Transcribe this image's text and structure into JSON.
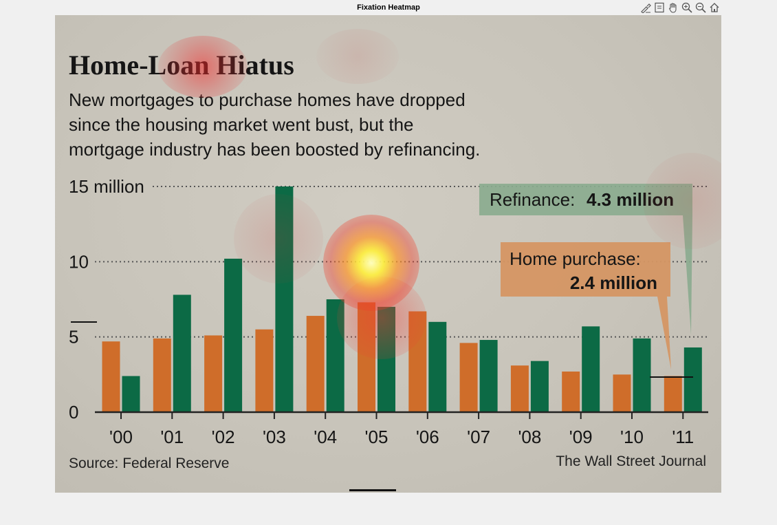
{
  "window": {
    "title": "Fixation Heatmap"
  },
  "toolbar": {
    "tools": [
      "brush-icon",
      "save-icon",
      "pan-icon",
      "zoom-in-icon",
      "zoom-out-icon",
      "home-icon"
    ]
  },
  "colors": {
    "home_purchase": "#cf6d2a",
    "refinance": "#0c6a45",
    "refinance_callout": "#8bab8f",
    "purchase_callout": "#d59663",
    "axis": "#222222",
    "text": "#111111"
  },
  "chart_data": {
    "type": "bar",
    "title": "Home-Loan Hiatus",
    "subtitle": [
      "New mortgages to purchase homes have dropped",
      "since the housing market went bust, but the",
      "mortgage industry has been boosted by refinancing."
    ],
    "categories": [
      "'00",
      "'01",
      "'02",
      "'03",
      "'04",
      "'05",
      "'06",
      "'07",
      "'08",
      "'09",
      "'10",
      "'11"
    ],
    "series": [
      {
        "name": "Home purchase",
        "values": [
          4.7,
          4.9,
          5.1,
          5.5,
          6.4,
          7.3,
          6.7,
          4.6,
          3.1,
          2.7,
          2.5,
          2.4
        ]
      },
      {
        "name": "Refinance",
        "values": [
          2.4,
          7.8,
          10.2,
          15.0,
          7.5,
          7.0,
          6.0,
          4.8,
          3.4,
          5.7,
          4.9,
          4.3
        ]
      }
    ],
    "yticks": [
      0,
      5,
      10,
      15
    ],
    "ytick_labels": [
      "0",
      "5",
      "10",
      "15 million"
    ],
    "ylim": [
      0,
      15
    ],
    "grid": "dotted horizontal",
    "annotations": [
      {
        "label": "Refinance:",
        "value": "4.3 million"
      },
      {
        "label": "Home purchase:",
        "value": "2.4 million"
      }
    ],
    "source": "Source: Federal Reserve",
    "credit": "The Wall Street Journal"
  }
}
